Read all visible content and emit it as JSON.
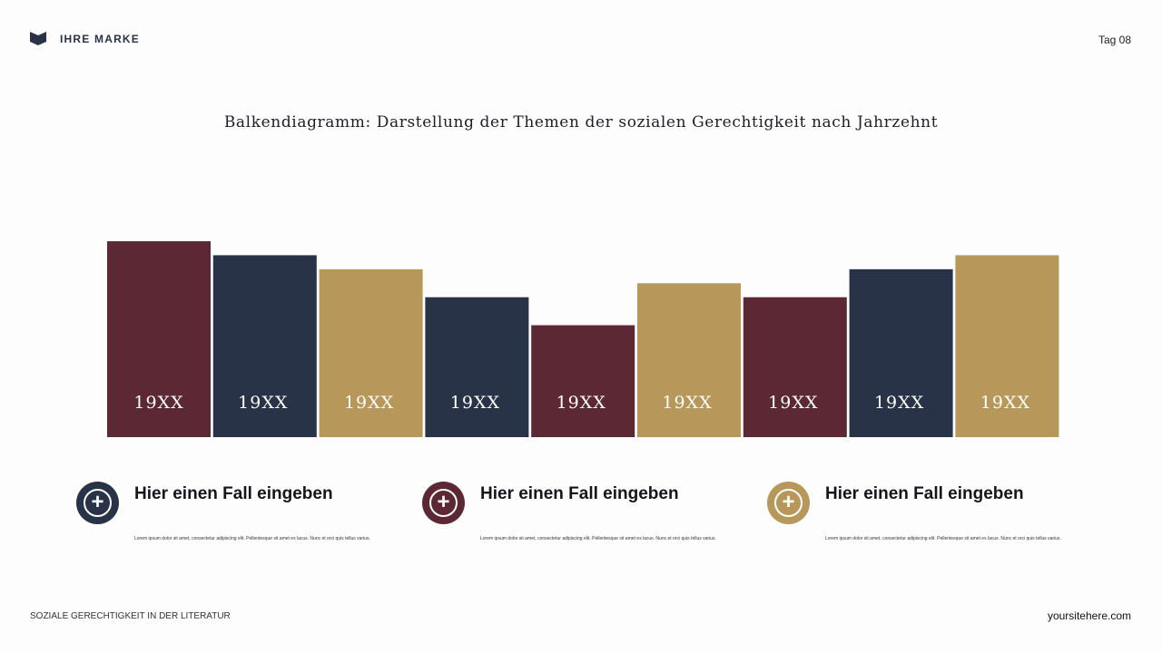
{
  "header": {
    "brand": "IHRE MARKE",
    "day": "Tag 08"
  },
  "colors": {
    "maroon": "#5c2834",
    "navy": "#283347",
    "gold": "#b8975a"
  },
  "chart_data": {
    "type": "bar",
    "title": "Balkendiagramm: Darstellung der Themen der sozialen Gerechtigkeit nach Jahrzehnt",
    "categories": [
      "19XX",
      "19XX",
      "19XX",
      "19XX",
      "19XX",
      "19XX",
      "19XX",
      "19XX",
      "19XX"
    ],
    "values": [
      7,
      6.5,
      6,
      5,
      4,
      5.5,
      5,
      6,
      6.5
    ],
    "bar_colors": [
      "#5c2834",
      "#283347",
      "#b8975a",
      "#283347",
      "#5c2834",
      "#b8975a",
      "#5c2834",
      "#283347",
      "#b8975a"
    ],
    "ylim": [
      0,
      7
    ],
    "grid": false,
    "axes": false
  },
  "cases": [
    {
      "icon": "plus-circle-icon",
      "color": "#283347",
      "title": "Hier einen Fall eingeben",
      "text": "Lorem ipsum dolor sit amet, consectetur adipiscing elit. Pellentesque sit amet ex lacus. Nunc et orci quis tellus varius."
    },
    {
      "icon": "plus-circle-icon",
      "color": "#5c2834",
      "title": "Hier einen Fall eingeben",
      "text": "Lorem ipsum dolor sit amet, consectetur adipiscing elit. Pellentesque sit amet ex lacus. Nunc et orci quis tellus varius."
    },
    {
      "icon": "plus-circle-icon",
      "color": "#b8975a",
      "title": "Hier einen Fall eingeben",
      "text": "Lorem ipsum dolor sit amet, consectetur adipiscing elit. Pellentesque sit amet ex lacus. Nunc et orci quis tellus varius."
    }
  ],
  "footer": {
    "left": "SOZIALE GERECHTIGKEIT IN DER LITERATUR",
    "right": "yoursitehere.com"
  }
}
